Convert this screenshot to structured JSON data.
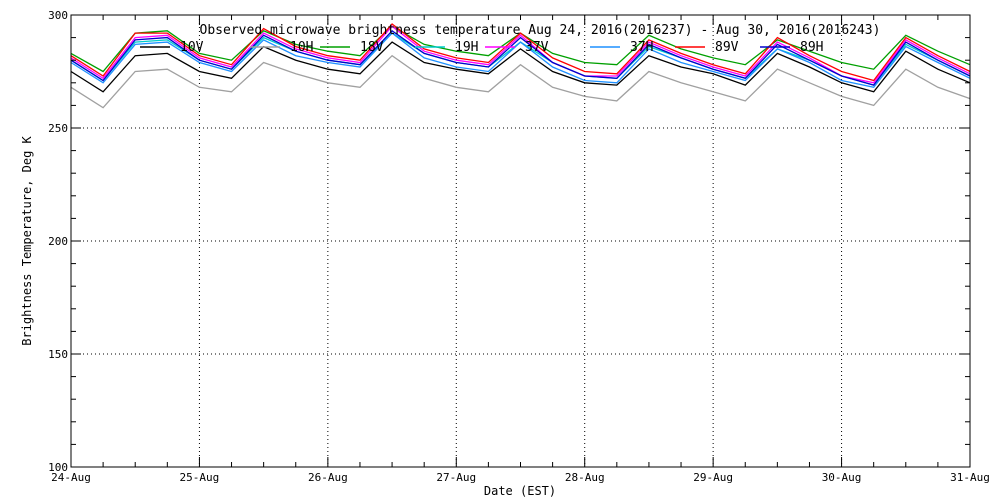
{
  "chart_data": {
    "type": "line",
    "title": "Observed microwave brightness temperature Aug 24, 2016(2016237) - Aug 30, 2016(2016243)",
    "xlabel": "Date (EST)",
    "ylabel": "Brightness Temperature, Deg K",
    "ylim": [
      100,
      300
    ],
    "xlim": [
      "2016-08-24",
      "2016-08-31"
    ],
    "yticks": [
      {
        "value": 100,
        "label": "100"
      },
      {
        "value": 150,
        "label": "150"
      },
      {
        "value": 200,
        "label": "200"
      },
      {
        "value": 250,
        "label": "250"
      },
      {
        "value": 300,
        "label": "300"
      }
    ],
    "xticks": [
      {
        "value": "2016-08-24",
        "label": "24-Aug"
      },
      {
        "value": "2016-08-25",
        "label": "25-Aug"
      },
      {
        "value": "2016-08-26",
        "label": "26-Aug"
      },
      {
        "value": "2016-08-27",
        "label": "27-Aug"
      },
      {
        "value": "2016-08-28",
        "label": "28-Aug"
      },
      {
        "value": "2016-08-29",
        "label": "29-Aug"
      },
      {
        "value": "2016-08-30",
        "label": "30-Aug"
      },
      {
        "value": "2016-08-31",
        "label": "31-Aug"
      }
    ],
    "grid": "dotted-major",
    "legend_position": "top",
    "x": [
      "2016-08-24 00:00",
      "2016-08-24 06:00",
      "2016-08-24 12:00",
      "2016-08-24 18:00",
      "2016-08-25 00:00",
      "2016-08-25 06:00",
      "2016-08-25 12:00",
      "2016-08-25 18:00",
      "2016-08-26 00:00",
      "2016-08-26 06:00",
      "2016-08-26 12:00",
      "2016-08-26 18:00",
      "2016-08-27 00:00",
      "2016-08-27 06:00",
      "2016-08-27 12:00",
      "2016-08-27 18:00",
      "2016-08-28 00:00",
      "2016-08-28 06:00",
      "2016-08-28 12:00",
      "2016-08-28 18:00",
      "2016-08-29 00:00",
      "2016-08-29 06:00",
      "2016-08-29 12:00",
      "2016-08-29 18:00",
      "2016-08-30 00:00",
      "2016-08-30 06:00",
      "2016-08-30 12:00",
      "2016-08-30 18:00",
      "2016-08-31 00:00"
    ],
    "series": [
      {
        "name": "10V",
        "color": "#000000",
        "values": [
          275,
          266,
          282,
          283,
          275,
          272,
          286,
          280,
          276,
          274,
          288,
          279,
          276,
          274,
          285,
          275,
          270,
          269,
          282,
          277,
          274,
          269,
          283,
          277,
          270,
          266,
          284,
          276,
          270
        ]
      },
      {
        "name": "10H",
        "color": "#a0a0a0",
        "values": [
          268,
          259,
          275,
          276,
          268,
          266,
          279,
          274,
          270,
          268,
          282,
          272,
          268,
          266,
          278,
          268,
          264,
          262,
          275,
          270,
          266,
          262,
          276,
          270,
          264,
          260,
          276,
          268,
          263
        ]
      },
      {
        "name": "18V",
        "color": "#00a000",
        "values": [
          283,
          275,
          292,
          293,
          283,
          280,
          293,
          287,
          284,
          282,
          295,
          287,
          284,
          282,
          292,
          283,
          279,
          278,
          291,
          285,
          281,
          278,
          289,
          284,
          279,
          276,
          291,
          284,
          278
        ]
      },
      {
        "name": "19H",
        "color": "#00cccc",
        "values": [
          280,
          271,
          288,
          289,
          280,
          276,
          290,
          284,
          280,
          278,
          292,
          283,
          279,
          277,
          288,
          279,
          273,
          272,
          286,
          281,
          276,
          272,
          285,
          280,
          273,
          269,
          287,
          280,
          273
        ]
      },
      {
        "name": "37V",
        "color": "#ff00ff",
        "values": [
          281,
          272,
          290,
          291,
          281,
          277,
          292,
          285,
          281,
          279,
          295,
          284,
          280,
          278,
          291,
          279,
          273,
          273,
          288,
          282,
          277,
          273,
          288,
          281,
          273,
          270,
          289,
          281,
          274
        ]
      },
      {
        "name": "37H",
        "color": "#1e90ff",
        "values": [
          279,
          270,
          287,
          288,
          279,
          275,
          289,
          282,
          279,
          277,
          292,
          281,
          277,
          275,
          288,
          277,
          271,
          270,
          285,
          279,
          275,
          271,
          285,
          279,
          271,
          268,
          286,
          279,
          272
        ]
      },
      {
        "name": "89V",
        "color": "#ff0000",
        "values": [
          282,
          273,
          292,
          292,
          282,
          278,
          294,
          286,
          282,
          280,
          296,
          285,
          281,
          279,
          292,
          281,
          275,
          274,
          289,
          283,
          278,
          274,
          290,
          282,
          275,
          271,
          290,
          282,
          275
        ]
      },
      {
        "name": "89H",
        "color": "#0000cc",
        "values": [
          280,
          271,
          289,
          290,
          280,
          276,
          291,
          284,
          280,
          278,
          293,
          283,
          279,
          277,
          290,
          279,
          273,
          272,
          287,
          281,
          276,
          272,
          287,
          280,
          273,
          269,
          288,
          280,
          273
        ]
      }
    ]
  }
}
